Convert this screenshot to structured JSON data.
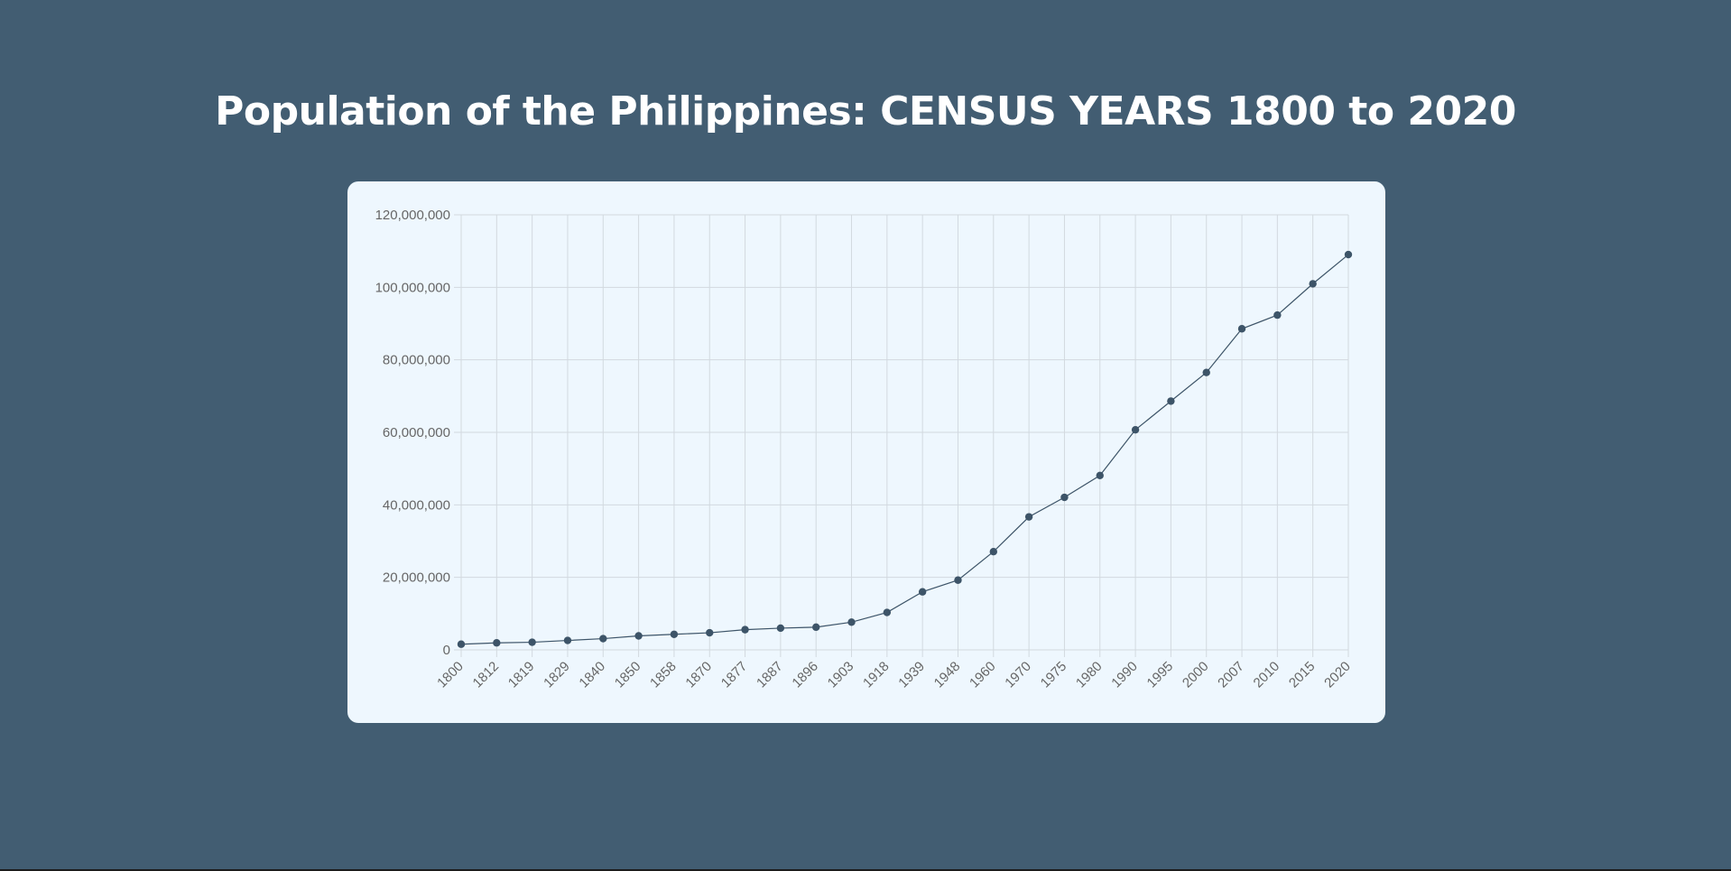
{
  "page": {
    "title": "Population of the Philippines: CENSUS YEARS 1800 to 2020"
  },
  "colors": {
    "background": "#425d72",
    "card": "#eef7fe",
    "line": "#3d5468",
    "point": "#3d5468",
    "grid": "#d2d9df",
    "tick_text": "#666666",
    "title": "#ffffff"
  },
  "chart_data": {
    "type": "line",
    "categories": [
      "1800",
      "1812",
      "1819",
      "1829",
      "1840",
      "1850",
      "1858",
      "1870",
      "1877",
      "1887",
      "1896",
      "1903",
      "1918",
      "1939",
      "1948",
      "1960",
      "1970",
      "1975",
      "1980",
      "1990",
      "1995",
      "2000",
      "2007",
      "2010",
      "2015",
      "2020"
    ],
    "series": [
      {
        "values": [
          1561251,
          1933802,
          2106116,
          2593287,
          3096031,
          3857424,
          4290381,
          4712006,
          5567685,
          5984717,
          6261339,
          7635426,
          10314310,
          16000303,
          19234182,
          27087685,
          36684486,
          42070660,
          48098460,
          60703206,
          68616536,
          76506928,
          88566732,
          92337852,
          100981437,
          109035343
        ]
      }
    ],
    "yticks": [
      "120,000,000",
      "100,000,000",
      "80,000,000",
      "60,000,000",
      "40,000,000",
      "20,000,000",
      "0"
    ],
    "ylim": [
      0,
      120000000
    ],
    "grid": true,
    "legend": "none"
  }
}
